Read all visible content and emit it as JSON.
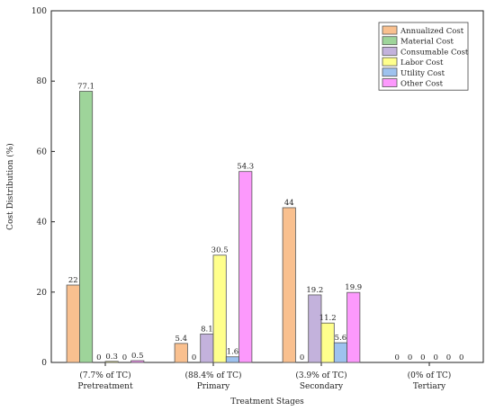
{
  "chart_data": {
    "type": "bar",
    "xlabel": "Treatment Stages",
    "ylabel": "Cost Distribution (%)",
    "ylim": [
      0,
      100
    ],
    "yticks": [
      0,
      20,
      40,
      60,
      80,
      100
    ],
    "grid": false,
    "legend_position": "top-right",
    "categories": [
      {
        "line1": "(7.7% of TC)",
        "line2": "Pretreatment"
      },
      {
        "line1": "(88.4% of TC)",
        "line2": "Primary"
      },
      {
        "line1": "(3.9% of TC)",
        "line2": "Secondary"
      },
      {
        "line1": "(0% of TC)",
        "line2": "Tertiary"
      }
    ],
    "series": [
      {
        "name": "Annualized Cost",
        "color": "#f9c08f",
        "values": [
          22,
          5.4,
          44,
          0
        ],
        "labels": [
          "22",
          "5.4",
          "44",
          "0"
        ]
      },
      {
        "name": "Material Cost",
        "color": "#9ed49a",
        "values": [
          77.1,
          0,
          0,
          0
        ],
        "labels": [
          "77.1",
          "0",
          "0",
          "0"
        ]
      },
      {
        "name": "Consumable Cost",
        "color": "#c3b2dc",
        "values": [
          0,
          8.1,
          19.2,
          0
        ],
        "labels": [
          "0",
          "8.1",
          "19.2",
          "0"
        ]
      },
      {
        "name": "Labor Cost",
        "color": "#ffff8c",
        "values": [
          0.3,
          30.5,
          11.2,
          0
        ],
        "labels": [
          "0.3",
          "30.5",
          "11.2",
          "0"
        ]
      },
      {
        "name": "Utility Cost",
        "color": "#9ec2ee",
        "values": [
          0,
          1.6,
          5.6,
          0
        ],
        "labels": [
          "0",
          "1.6",
          "5.6",
          "0"
        ]
      },
      {
        "name": "Other Cost",
        "color": "#fc99fc",
        "values": [
          0.5,
          54.3,
          19.9,
          0
        ],
        "labels": [
          "0.5",
          "54.3",
          "19.9",
          "0"
        ]
      }
    ]
  }
}
